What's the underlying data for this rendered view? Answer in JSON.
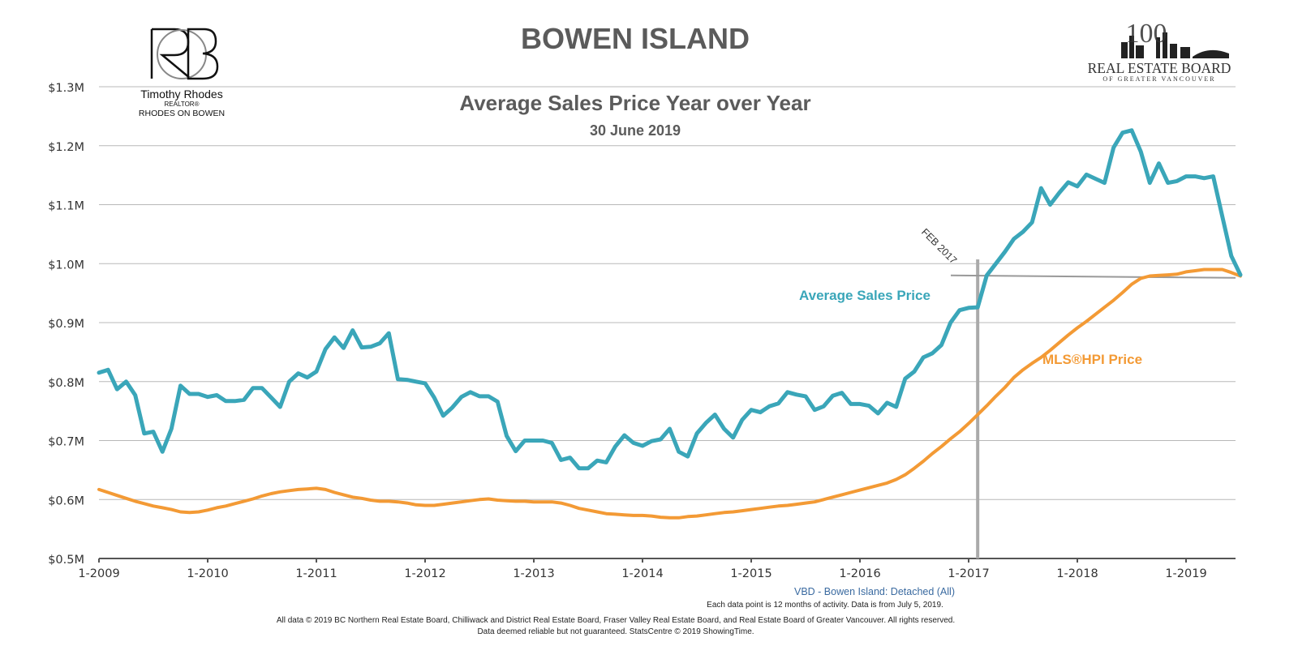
{
  "header": {
    "title": "BOWEN ISLAND",
    "chart_title": "Average Sales Price Year over Year",
    "chart_subtitle": "30 June 2019"
  },
  "agent_logo": {
    "monogram": "RB",
    "name": "Timothy Rhodes",
    "designation": "REALTOR®",
    "brand": "RHODES ON BOWEN"
  },
  "board_logo": {
    "number": "100",
    "line1": "REAL ESTATE BOARD",
    "line2": "OF GREATER VANCOUVER"
  },
  "annotations": {
    "marker_label": "FEB 2017",
    "marker_date": "2017-02"
  },
  "footer": {
    "source": "VBD - Bowen Island: Detached (All)",
    "note": "Each data point is 12 months of activity. Data is from July 5, 2019.",
    "copyright": "All data © 2019 BC Northern Real Estate Board, Chilliwack and District Real Estate Board, Fraser Valley Real Estate Board, and Real Estate Board of Greater Vancouver. All rights reserved.",
    "disclaimer": "Data deemed reliable but not guaranteed. StatsCentre © 2019 ShowingTime."
  },
  "colors": {
    "average_sales": "#3aa6b9",
    "hpi": "#f39a35",
    "grid": "#b8b8b8",
    "marker": "#aaaaaa",
    "title": "#5b5b5b",
    "source_text": "#3a6aa0"
  },
  "chart_data": {
    "type": "line",
    "title": "Average Sales Price Year over Year",
    "subtitle": "30 June 2019",
    "xlabel": "",
    "ylabel": "",
    "x_ticks": [
      "1-2009",
      "1-2010",
      "1-2011",
      "1-2012",
      "1-2013",
      "1-2014",
      "1-2015",
      "1-2016",
      "1-2017",
      "1-2018",
      "1-2019"
    ],
    "y_ticks": [
      "$0.5M",
      "$0.6M",
      "$0.7M",
      "$0.8M",
      "$0.9M",
      "$1.0M",
      "$1.1M",
      "$1.2M",
      "$1.3M"
    ],
    "ylim": [
      0.5,
      1.3
    ],
    "xlim": [
      "2009-01",
      "2019-06"
    ],
    "grid": true,
    "legend": "inline labels",
    "start": "2009-01",
    "series": [
      {
        "name": "Average Sales Price",
        "values": [
          0.815,
          0.82,
          0.787,
          0.8,
          0.777,
          0.712,
          0.715,
          0.681,
          0.72,
          0.793,
          0.779,
          0.779,
          0.774,
          0.777,
          0.767,
          0.767,
          0.769,
          0.789,
          0.789,
          0.773,
          0.757,
          0.8,
          0.814,
          0.807,
          0.817,
          0.855,
          0.875,
          0.857,
          0.887,
          0.858,
          0.859,
          0.865,
          0.882,
          0.804,
          0.803,
          0.8,
          0.797,
          0.773,
          0.742,
          0.756,
          0.774,
          0.782,
          0.775,
          0.775,
          0.766,
          0.708,
          0.682,
          0.7,
          0.7,
          0.7,
          0.696,
          0.667,
          0.671,
          0.653,
          0.653,
          0.666,
          0.663,
          0.69,
          0.709,
          0.696,
          0.691,
          0.699,
          0.702,
          0.72,
          0.681,
          0.673,
          0.712,
          0.73,
          0.744,
          0.72,
          0.705,
          0.735,
          0.752,
          0.748,
          0.758,
          0.763,
          0.782,
          0.778,
          0.775,
          0.752,
          0.758,
          0.776,
          0.781,
          0.762,
          0.762,
          0.759,
          0.746,
          0.764,
          0.757,
          0.805,
          0.817,
          0.841,
          0.848,
          0.862,
          0.9,
          0.921,
          0.925,
          0.926,
          0.98,
          1.0,
          1.02,
          1.042,
          1.054,
          1.07,
          1.128,
          1.1,
          1.12,
          1.138,
          1.131,
          1.151,
          1.144,
          1.137,
          1.197,
          1.222,
          1.226,
          1.19,
          1.137,
          1.17,
          1.137,
          1.14,
          1.148,
          1.148,
          1.145,
          1.148,
          1.08,
          1.013,
          0.981
        ]
      },
      {
        "name": "MLS®HPI Price",
        "values": [
          0.617,
          0.612,
          0.607,
          0.602,
          0.597,
          0.593,
          0.589,
          0.586,
          0.583,
          0.579,
          0.578,
          0.579,
          0.582,
          0.586,
          0.589,
          0.593,
          0.597,
          0.601,
          0.606,
          0.61,
          0.613,
          0.615,
          0.617,
          0.618,
          0.619,
          0.617,
          0.612,
          0.608,
          0.604,
          0.602,
          0.599,
          0.597,
          0.597,
          0.596,
          0.594,
          0.591,
          0.59,
          0.59,
          0.592,
          0.594,
          0.596,
          0.598,
          0.6,
          0.601,
          0.599,
          0.598,
          0.597,
          0.597,
          0.596,
          0.596,
          0.596,
          0.594,
          0.59,
          0.585,
          0.582,
          0.579,
          0.576,
          0.575,
          0.574,
          0.573,
          0.573,
          0.572,
          0.57,
          0.569,
          0.569,
          0.571,
          0.572,
          0.574,
          0.576,
          0.578,
          0.579,
          0.581,
          0.583,
          0.585,
          0.587,
          0.589,
          0.59,
          0.592,
          0.594,
          0.596,
          0.6,
          0.604,
          0.608,
          0.612,
          0.616,
          0.62,
          0.624,
          0.628,
          0.634,
          0.642,
          0.653,
          0.665,
          0.678,
          0.69,
          0.703,
          0.715,
          0.729,
          0.744,
          0.759,
          0.775,
          0.79,
          0.807,
          0.82,
          0.831,
          0.841,
          0.853,
          0.866,
          0.879,
          0.891,
          0.902,
          0.914,
          0.926,
          0.938,
          0.951,
          0.965,
          0.975,
          0.979,
          0.98,
          0.981,
          0.982,
          0.986,
          0.988,
          0.99,
          0.99,
          0.99,
          0.985,
          0.979
        ]
      }
    ],
    "annotations": [
      {
        "text": "FEB 2017",
        "x": "2017-02",
        "type": "vertical-line"
      },
      {
        "text": "",
        "y": 0.98,
        "type": "horizontal-line"
      }
    ]
  }
}
